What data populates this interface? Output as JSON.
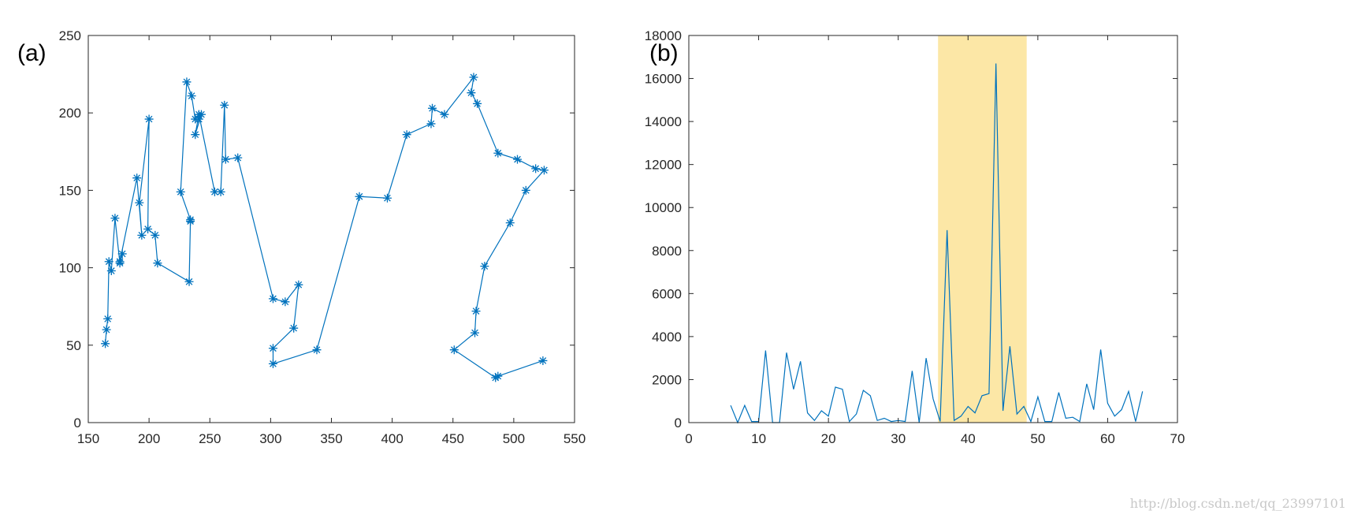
{
  "panels": {
    "a_label": "(a)",
    "b_label": "(b)"
  },
  "watermark": "http://blog.csdn.net/qq_23997101",
  "colors": {
    "line": "#0072bd",
    "highlight": "#fce7a6",
    "axis": "#262626"
  },
  "chart_data": [
    {
      "type": "line",
      "marker": "asterisk",
      "title": "",
      "xlabel": "",
      "ylabel": "",
      "xlim": [
        150,
        550
      ],
      "ylim": [
        0,
        250
      ],
      "xticks": [
        150,
        200,
        250,
        300,
        350,
        400,
        450,
        500,
        550
      ],
      "yticks": [
        0,
        50,
        100,
        150,
        200,
        250
      ],
      "grid": false,
      "series": [
        {
          "x": [
            164,
            165,
            166,
            167,
            169,
            172,
            176,
            178,
            176,
            190,
            194,
            192,
            200,
            199,
            205,
            207,
            233,
            234,
            234,
            226,
            231,
            235,
            238,
            241,
            243,
            238,
            241,
            254,
            259,
            262,
            263,
            273,
            302,
            312,
            323,
            319,
            302,
            302,
            338,
            373,
            396,
            412,
            432,
            433,
            443,
            467,
            465,
            470,
            487,
            503,
            518,
            525,
            510,
            497,
            476,
            469,
            468,
            451,
            485,
            487,
            524
          ],
          "y": [
            51,
            60,
            67,
            104,
            98,
            132,
            103,
            109,
            104,
            158,
            121,
            142,
            196,
            125,
            121,
            103,
            91,
            130,
            131,
            149,
            220,
            211,
            196,
            196,
            199,
            186,
            199,
            149,
            149,
            205,
            170,
            171,
            80,
            78,
            89,
            61,
            48,
            38,
            47,
            146,
            145,
            186,
            193,
            203,
            199,
            223,
            213,
            206,
            174,
            170,
            164,
            163,
            150,
            129,
            101,
            72,
            58,
            47,
            29,
            30,
            40
          ]
        }
      ]
    },
    {
      "type": "line",
      "title": "",
      "xlabel": "",
      "ylabel": "",
      "xlim": [
        0,
        70
      ],
      "ylim": [
        0,
        18000
      ],
      "xticks": [
        0,
        10,
        20,
        30,
        40,
        50,
        60,
        70
      ],
      "yticks": [
        0,
        2000,
        4000,
        6000,
        8000,
        10000,
        12000,
        14000,
        16000,
        18000
      ],
      "grid": false,
      "highlight_x_range": [
        35.7,
        48.4
      ],
      "series": [
        {
          "x": [
            6,
            7,
            8,
            9,
            10,
            11,
            12,
            13,
            14,
            15,
            16,
            17,
            18,
            19,
            20,
            21,
            22,
            23,
            24,
            25,
            26,
            27,
            28,
            29,
            30,
            31,
            32,
            33,
            34,
            35,
            36,
            37,
            38,
            39,
            40,
            41,
            42,
            43,
            44,
            45,
            46,
            47,
            48,
            49,
            50,
            51,
            52,
            53,
            54,
            55,
            56,
            57,
            58,
            59,
            60,
            61,
            62,
            63,
            64,
            65
          ],
          "y": [
            800,
            0,
            800,
            50,
            50,
            3350,
            0,
            0,
            3250,
            1550,
            2850,
            450,
            100,
            550,
            300,
            1650,
            1550,
            50,
            400,
            1500,
            1250,
            100,
            200,
            50,
            100,
            50,
            2400,
            0,
            3000,
            1100,
            50,
            8950,
            100,
            300,
            750,
            450,
            1250,
            1350,
            16700,
            550,
            3550,
            400,
            750,
            50,
            1200,
            50,
            50,
            1400,
            200,
            250,
            50,
            1800,
            600,
            3400,
            900,
            300,
            600,
            1450,
            50,
            1450
          ]
        }
      ]
    }
  ]
}
